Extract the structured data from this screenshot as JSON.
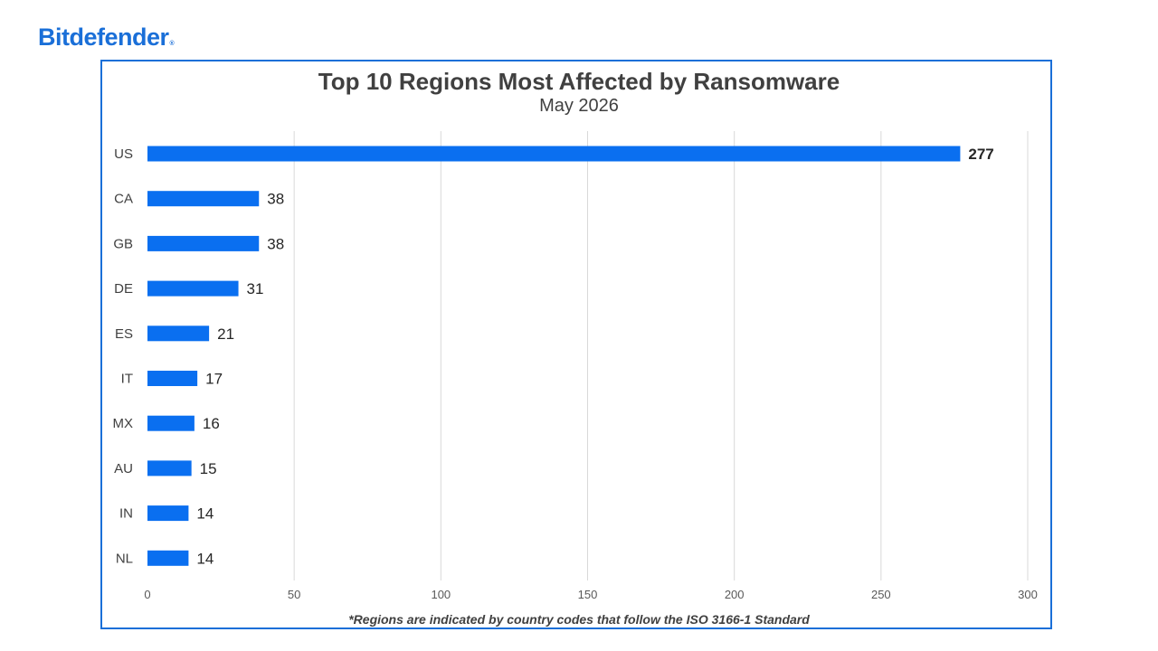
{
  "brand": {
    "name": "Bitdefender",
    "mark": "®"
  },
  "colors": {
    "accent": "#0a6ff0",
    "brand": "#1a6fd8",
    "grid": "#d9d9d9"
  },
  "chart_data": {
    "type": "bar",
    "orientation": "horizontal",
    "title": "Top 10 Regions Most Affected by Ransomware",
    "subtitle": "May 2026",
    "categories": [
      "US",
      "CA",
      "GB",
      "DE",
      "ES",
      "IT",
      "MX",
      "AU",
      "IN",
      "NL"
    ],
    "values": [
      277,
      38,
      38,
      31,
      21,
      17,
      16,
      15,
      14,
      14
    ],
    "xlim": [
      0,
      300
    ],
    "xticks": [
      0,
      50,
      100,
      150,
      200,
      250,
      300
    ],
    "xlabel": "",
    "ylabel": "",
    "grid": true,
    "legend": "none",
    "footnote": "*Regions are indicated by country codes that follow the ISO 3166-1 Standard"
  }
}
